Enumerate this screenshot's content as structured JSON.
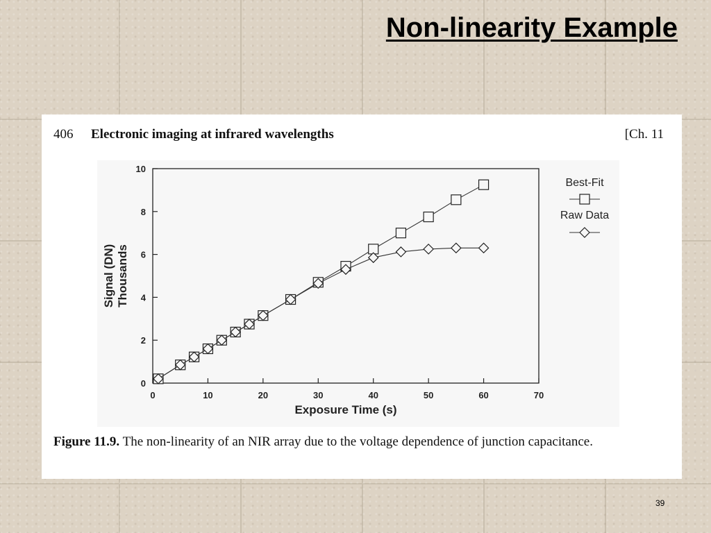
{
  "slide": {
    "title": "Non-linearity Example",
    "page_number": "39"
  },
  "book": {
    "page_no": "406",
    "chapter_title": "Electronic imaging at infrared wavelengths",
    "chapter_ref": "[Ch. 11"
  },
  "caption": {
    "label": "Figure 11.9.",
    "text": " The non-linearity of an NIR array due to the voltage dependence of junction capacitance."
  },
  "chart_data": {
    "type": "line",
    "xlabel": "Exposure Time (s)",
    "ylabel": "Signal (DN)",
    "ylabel2": "Thousands",
    "xlim": [
      0,
      70
    ],
    "ylim": [
      0,
      10
    ],
    "xticks": [
      0,
      10,
      20,
      30,
      40,
      50,
      60,
      70
    ],
    "yticks": [
      0,
      2,
      4,
      6,
      8,
      10
    ],
    "grid": false,
    "legend_position": "right",
    "series": [
      {
        "name": "Best-Fit",
        "marker": "square",
        "x": [
          1,
          5,
          7.5,
          10,
          12.5,
          15,
          17.5,
          20,
          25,
          30,
          35,
          40,
          45,
          50,
          55,
          60
        ],
        "y": [
          0.2,
          0.85,
          1.22,
          1.6,
          2.0,
          2.38,
          2.75,
          3.15,
          3.9,
          4.7,
          5.45,
          6.25,
          7.0,
          7.75,
          8.55,
          9.25
        ]
      },
      {
        "name": "Raw Data",
        "marker": "diamond",
        "x": [
          1,
          5,
          7.5,
          10,
          12.5,
          15,
          17.5,
          20,
          25,
          30,
          35,
          40,
          45,
          50,
          55,
          60
        ],
        "y": [
          0.2,
          0.85,
          1.22,
          1.6,
          2.0,
          2.38,
          2.75,
          3.15,
          3.9,
          4.65,
          5.3,
          5.85,
          6.12,
          6.25,
          6.3,
          6.3
        ]
      }
    ]
  }
}
